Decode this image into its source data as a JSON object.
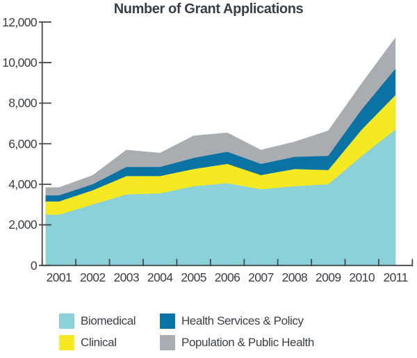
{
  "title": "Number of Grant Applications",
  "colors": {
    "biomedical": "#8bd1da",
    "clinical": "#f4e923",
    "health_services_policy": "#0a73a3",
    "population_public_health": "#a9adb2",
    "axis_line": "#45484d",
    "text": "#3a3f46"
  },
  "chart_data": {
    "type": "area",
    "stacked": true,
    "title": "Number of Grant Applications",
    "xlabel": "",
    "ylabel": "",
    "x": [
      "2001",
      "2002",
      "2003",
      "2004",
      "2005",
      "2006",
      "2007",
      "2008",
      "2009",
      "2010",
      "2011"
    ],
    "series": [
      {
        "name": "Biomedical",
        "color": "#8bd1da",
        "values": [
          2500,
          3000,
          3500,
          3550,
          3900,
          4050,
          3750,
          3900,
          4000,
          5400,
          6700
        ]
      },
      {
        "name": "Clinical",
        "color": "#f4e923",
        "values": [
          650,
          700,
          900,
          850,
          850,
          950,
          700,
          850,
          700,
          1300,
          1700
        ]
      },
      {
        "name": "Health Services & Policy",
        "color": "#0a73a3",
        "values": [
          300,
          300,
          450,
          450,
          550,
          600,
          550,
          600,
          700,
          1000,
          1300
        ]
      },
      {
        "name": "Population & Public Health",
        "color": "#a9adb2",
        "values": [
          400,
          450,
          850,
          700,
          1100,
          950,
          700,
          750,
          1250,
          1300,
          1550
        ]
      }
    ],
    "stacked_totals": [
      3850,
      4450,
      5700,
      5550,
      6400,
      6550,
      5700,
      6100,
      6650,
      9000,
      11250
    ],
    "ylim": [
      0,
      12000
    ],
    "y_tick_step": 2000,
    "y_ticks": [
      "0",
      "2,000",
      "4,000",
      "6,000",
      "8,000",
      "10,000",
      "12,000"
    ],
    "grid": false,
    "legend_position": "bottom"
  },
  "legend": {
    "items": [
      {
        "label": "Biomedical",
        "color": "#8bd1da"
      },
      {
        "label": "Clinical",
        "color": "#f4e923"
      },
      {
        "label": "Health Services & Policy",
        "color": "#0a73a3"
      },
      {
        "label": "Population & Public Health",
        "color": "#a9adb2"
      }
    ]
  }
}
